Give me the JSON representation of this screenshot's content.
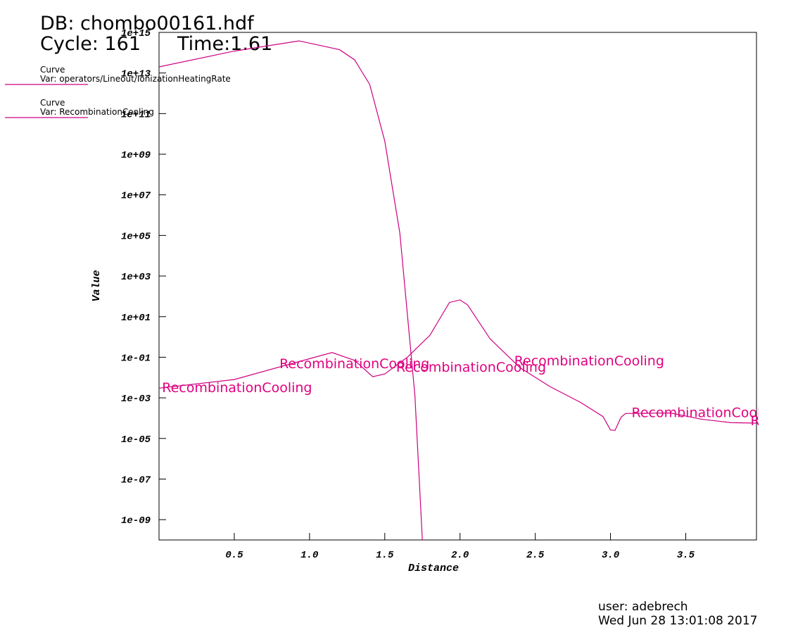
{
  "chart_data": {
    "type": "line",
    "header": {
      "db": "DB: chombo00161.hdf",
      "cycle": "Cycle: 161",
      "time": "Time:1.61"
    },
    "xlabel": "Distance",
    "ylabel": "Value",
    "log_y": true,
    "xlim": [
      0,
      3.97
    ],
    "ylim": [
      1e-10,
      1000000000000000.0
    ],
    "xticks": [
      0.5,
      {
        "value": 1,
        "label": "1.0"
      },
      1.5,
      {
        "value": 2,
        "label": "2.0"
      },
      2.5,
      {
        "value": 3,
        "label": "3.0"
      },
      3.5
    ],
    "yticks": [
      {
        "value": 1000000000000000.0,
        "label": "1e+15"
      },
      {
        "value": 10000000000000.0,
        "label": "1e+13"
      },
      {
        "value": 100000000000.0,
        "label": "1e+11"
      },
      {
        "value": 1000000000.0,
        "label": "1e+09"
      },
      {
        "value": 10000000.0,
        "label": "1e+07"
      },
      {
        "value": 100000.0,
        "label": "1e+05"
      },
      {
        "value": 1000.0,
        "label": "1e+03"
      },
      {
        "value": 10,
        "label": "1e+01"
      },
      {
        "value": 0.1,
        "label": "1e-01"
      },
      {
        "value": 0.001,
        "label": "1e-03"
      },
      {
        "value": 1e-05,
        "label": "1e-05"
      },
      {
        "value": 1e-07,
        "label": "1e-07"
      },
      {
        "value": 1e-09,
        "label": "1e-09"
      }
    ],
    "series": [
      {
        "label": "Curve",
        "name": "Var: operators/Lineout/IonizationHeatingRate",
        "color": "#cc0080",
        "x": [
          0,
          0.5,
          0.93,
          1.2,
          1.3,
          1.4,
          1.5,
          1.6,
          1.7,
          1.75
        ],
        "values": [
          20000000000000.0,
          120000000000000.0,
          380000000000000.0,
          140000000000000.0,
          44000000000000.0,
          2700000000000.0,
          4400000000.0,
          130000.0,
          0.0013,
          1e-10
        ]
      },
      {
        "label": "Curve",
        "name": "Var: RecombinationCooling",
        "color": "#cc0080",
        "x": [
          0,
          0.5,
          1.0,
          1.15,
          1.3,
          1.42,
          1.5,
          1.65,
          1.8,
          1.93,
          2.0,
          2.05,
          2.2,
          2.4,
          2.6,
          2.8,
          2.95,
          3.0,
          3.03,
          3.07,
          3.1,
          3.4,
          3.6,
          3.8,
          3.97
        ],
        "values": [
          0.003,
          0.008,
          0.085,
          0.17,
          0.07,
          0.011,
          0.015,
          0.1,
          1.2,
          50,
          66,
          38,
          0.8,
          0.03,
          0.0035,
          0.0006,
          0.00012,
          2.6e-05,
          2.5e-05,
          0.00011,
          0.00017,
          0.00018,
          9e-05,
          6e-05,
          5.7e-05
        ]
      }
    ],
    "annotations": [
      {
        "text": "RecombinationCooling",
        "x": 0.02,
        "y": 0.0033
      },
      {
        "text": "RecombinationCooling",
        "x": 0.8,
        "y": 0.05
      },
      {
        "text": "RecombinationCooling",
        "x": 1.575,
        "y": 0.034
      },
      {
        "text": "RecombinationCooling",
        "x": 2.36,
        "y": 0.07
      },
      {
        "text": "RecombinationCooling",
        "x": 3.14,
        "y": 0.0002
      },
      {
        "text": "RecombinationCooling",
        "x": 3.93,
        "y": 8e-05
      }
    ],
    "footer": {
      "user": "user: adebrech",
      "date": "Wed Jun 28 13:01:08 2017"
    }
  }
}
